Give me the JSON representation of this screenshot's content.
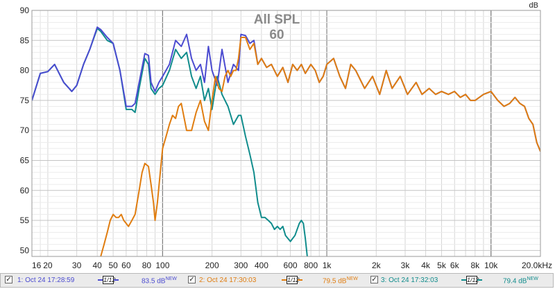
{
  "chart_data": {
    "type": "line",
    "title": "All SPL",
    "subtitle": "60",
    "ylabel": "dB",
    "xscale": "log",
    "xlim": [
      16,
      20000
    ],
    "ylim": [
      49,
      90
    ],
    "grid": true,
    "y_ticks": [
      "50",
      "55",
      "60",
      "65",
      "70",
      "75",
      "80",
      "85",
      "90"
    ],
    "x_ticks": [
      "16",
      "20",
      "30",
      "40",
      "50",
      "60",
      "80",
      "100",
      "200",
      "300",
      "400",
      "600",
      "800",
      "1k",
      "2k",
      "3k",
      "4k",
      "5k",
      "6k",
      "8k",
      "10k",
      "20.0kHz"
    ],
    "series": [
      {
        "name": "1: Oct 24 17:28:59",
        "color": "#4b4bd0",
        "x": [
          16,
          18,
          20,
          22,
          25,
          28,
          30,
          33,
          36,
          40,
          42,
          46,
          50,
          55,
          60,
          65,
          68,
          72,
          78,
          82,
          85,
          90,
          95,
          100,
          110,
          120,
          130,
          140,
          150,
          160,
          170,
          180,
          190,
          200,
          215,
          230,
          250,
          270,
          290,
          300,
          320,
          340,
          360,
          380,
          400,
          430,
          460,
          500,
          540,
          580,
          620,
          660,
          700,
          740,
          800,
          850,
          900,
          950,
          1000,
          1100,
          1200,
          1300,
          1400,
          1500,
          1700,
          1900,
          2100,
          2300,
          2500,
          2800,
          3100,
          3500,
          3800,
          4200,
          4600,
          5000,
          5500,
          6000,
          6500,
          7000,
          7500,
          8000,
          9000,
          10000,
          11000,
          12000,
          13000,
          14000,
          15000,
          16000,
          17000,
          18000,
          19000,
          20000
        ],
        "y": [
          75,
          79.5,
          79.8,
          81,
          78,
          76.5,
          77.5,
          81,
          83.5,
          87.2,
          86.8,
          85.5,
          84.5,
          80,
          74,
          74,
          74.5,
          78,
          82.8,
          82.5,
          78,
          76.5,
          78,
          79,
          81,
          85,
          84,
          86,
          82,
          80,
          81,
          78,
          84,
          80,
          77.5,
          83.5,
          78,
          81,
          80,
          86,
          85.8,
          84.5,
          85,
          81,
          82,
          80.5,
          81,
          79,
          80.5,
          78,
          81,
          80,
          81,
          79.5,
          81,
          80,
          78,
          79,
          81,
          82,
          79,
          77,
          81,
          80,
          77,
          79,
          76,
          80,
          77,
          79,
          76,
          78,
          76,
          77,
          76,
          76.5,
          76,
          76.5,
          75.5,
          76,
          75,
          75,
          76,
          76.5,
          75,
          74,
          74.5,
          75.5,
          74.5,
          74,
          72,
          71,
          68,
          66.5
        ]
      },
      {
        "name": "2: Oct 24 17:30:03",
        "color": "#e07d10",
        "x": [
          42,
          44,
          46,
          48,
          50,
          52,
          54,
          56,
          58,
          60,
          62,
          65,
          68,
          72,
          75,
          78,
          82,
          85,
          88,
          90,
          93,
          96,
          100,
          105,
          110,
          115,
          120,
          125,
          130,
          140,
          150,
          160,
          170,
          180,
          190,
          200,
          210,
          220,
          230,
          240,
          250,
          260,
          270,
          280,
          290,
          300,
          320,
          340,
          360,
          380,
          400,
          430,
          460,
          500,
          540,
          580,
          620,
          660,
          700,
          740,
          800,
          850,
          900,
          950,
          1000,
          1100,
          1200,
          1300,
          1400,
          1500,
          1700,
          1900,
          2100,
          2300,
          2500,
          2800,
          3100,
          3500,
          3800,
          4200,
          4600,
          5000,
          5500,
          6000,
          6500,
          7000,
          7500,
          8000,
          9000,
          10000,
          11000,
          12000,
          13000,
          14000,
          15000,
          16000,
          17000,
          18000,
          19000,
          20000
        ],
        "y": [
          49,
          51,
          53,
          55,
          56,
          55.5,
          55.5,
          56,
          55,
          54.5,
          54,
          55,
          56,
          60,
          63,
          64.5,
          64,
          61,
          58,
          55,
          58,
          62,
          67,
          69,
          71,
          72.5,
          72,
          74,
          74.5,
          70,
          70,
          73,
          75,
          71.5,
          70,
          75,
          79,
          77,
          76.5,
          79,
          80,
          79,
          80,
          80,
          82,
          85.5,
          85.5,
          83.5,
          84.5,
          81,
          82,
          80.5,
          81,
          79,
          80.5,
          78,
          81,
          80,
          81,
          79.5,
          81,
          80,
          78,
          79,
          81,
          82,
          79,
          77,
          81,
          80,
          77,
          79,
          76,
          80,
          77,
          79,
          76,
          78,
          76,
          77,
          76,
          76.5,
          76,
          76.5,
          75.5,
          76,
          75,
          75,
          76,
          76.5,
          75,
          74,
          74.5,
          75.5,
          74.5,
          74,
          72,
          71,
          68,
          66.5
        ]
      },
      {
        "name": "3: Oct 24 17:32:03",
        "color": "#108c8c",
        "x": [
          16,
          18,
          20,
          22,
          25,
          28,
          30,
          33,
          36,
          40,
          42,
          46,
          50,
          55,
          60,
          65,
          68,
          72,
          78,
          82,
          85,
          90,
          95,
          100,
          110,
          120,
          130,
          140,
          150,
          160,
          170,
          180,
          190,
          200,
          215,
          230,
          250,
          270,
          290,
          300,
          320,
          340,
          360,
          380,
          400,
          420,
          440,
          460,
          480,
          500,
          520,
          540,
          560,
          600,
          640,
          680,
          700,
          720,
          740,
          760
        ],
        "y": [
          75,
          79.5,
          79.8,
          81,
          78,
          76.5,
          77.5,
          81,
          83.5,
          87,
          86.5,
          85,
          84.5,
          80,
          73.5,
          73.5,
          73,
          77,
          82,
          81,
          77,
          76,
          77,
          77.5,
          80,
          83.5,
          82,
          83,
          79,
          77,
          79,
          75,
          77,
          73.5,
          79,
          76,
          74,
          71,
          72.5,
          72.5,
          69,
          66,
          63,
          58,
          55.5,
          55.5,
          55,
          54.5,
          53.5,
          54,
          53.5,
          54,
          52.5,
          51.5,
          52.5,
          54.5,
          55,
          54.5,
          52,
          49
        ]
      }
    ]
  },
  "legend": {
    "items": [
      {
        "label": "1: Oct 24 17:28:59",
        "smoothing": "1/12",
        "spl": "83.5 dB",
        "badge": "NEW",
        "color": "#4b4bd0",
        "check": "✓"
      },
      {
        "label": "2: Oct 24 17:30:03",
        "smoothing": "1/12",
        "spl": "79.5 dB",
        "badge": "NEW",
        "color": "#e07d10",
        "check": "✓"
      },
      {
        "label": "3: Oct 24 17:32:03",
        "smoothing": "1/12",
        "spl": "79.4 dB",
        "badge": "NEW",
        "color": "#108c8c",
        "check": "✓"
      }
    ]
  }
}
